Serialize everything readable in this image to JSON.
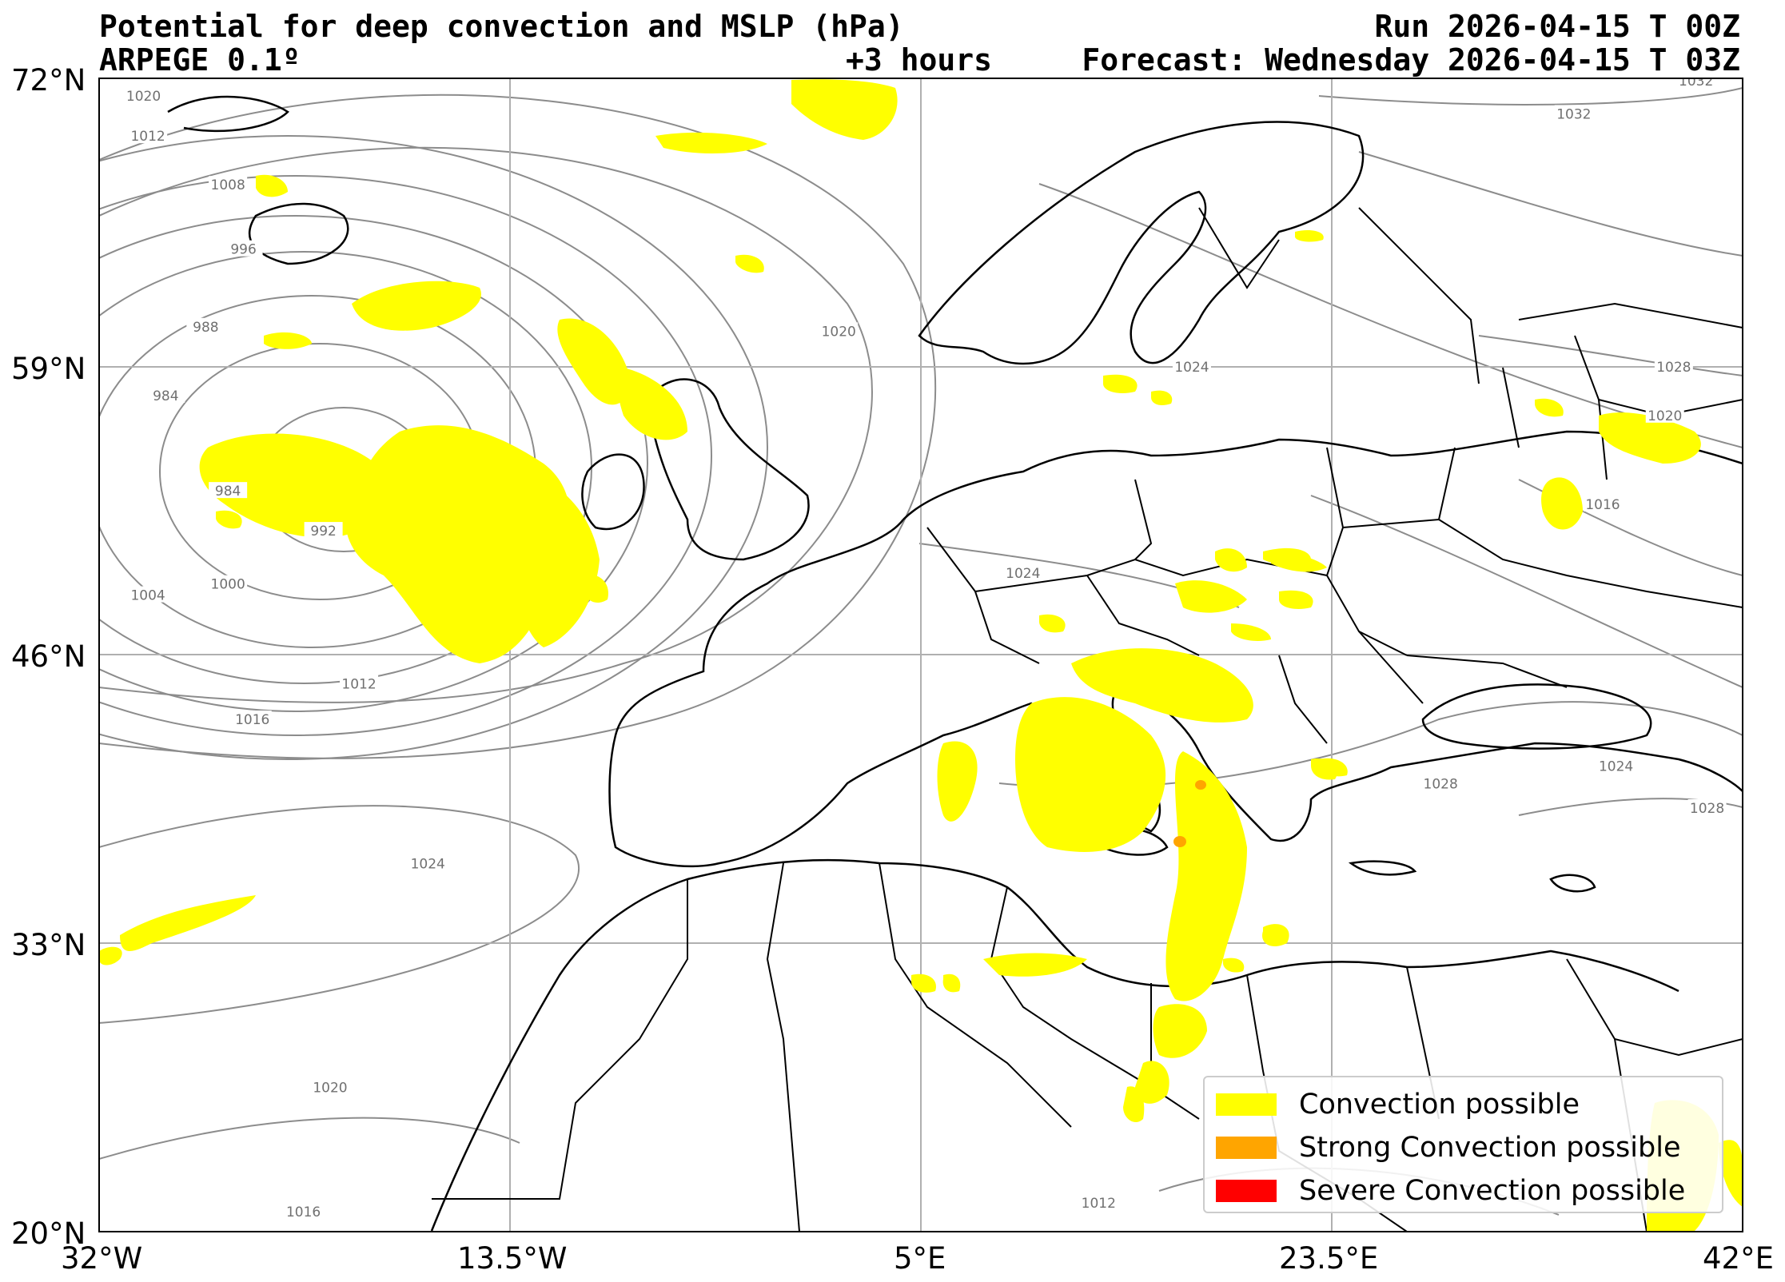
{
  "header": {
    "title": "Potential for deep convection and MSLP (hPa)",
    "model": "ARPEGE 0.1º",
    "lead": "+3 hours",
    "run": "Run 2026-04-15 T 00Z",
    "forecast": "Forecast: Wednesday 2026-04-15 T 03Z"
  },
  "axes": {
    "x_ticks": [
      {
        "value": -32,
        "label": "32°W"
      },
      {
        "value": -13.5,
        "label": "13.5°W"
      },
      {
        "value": 5,
        "label": "5°E"
      },
      {
        "value": 23.5,
        "label": "23.5°E"
      },
      {
        "value": 42,
        "label": "42°E"
      }
    ],
    "y_ticks": [
      {
        "value": 72,
        "label": "72°N"
      },
      {
        "value": 59,
        "label": "59°N"
      },
      {
        "value": 46,
        "label": "46°N"
      },
      {
        "value": 33,
        "label": "33°N"
      },
      {
        "value": 20,
        "label": "20°N"
      }
    ],
    "lon_range": [
      -32,
      42
    ],
    "lat_range": [
      20,
      72
    ],
    "grid": true
  },
  "legend": {
    "placement": "bottom-right",
    "items": [
      {
        "label": "Convection possible",
        "color": "#ffff00"
      },
      {
        "label": "Strong Convection possible",
        "color": "#ffa500"
      },
      {
        "label": "Severe Convection possible",
        "color": "#ff0000"
      }
    ]
  },
  "isobar_labels": [
    {
      "text": "1020",
      "lon": -30,
      "lat": 71.2
    },
    {
      "text": "1012",
      "lon": -29.8,
      "lat": 69.4
    },
    {
      "text": "1008",
      "lon": -26.2,
      "lat": 67.2
    },
    {
      "text": "996",
      "lon": -25.5,
      "lat": 64.3
    },
    {
      "text": "988",
      "lon": -27.2,
      "lat": 60.8
    },
    {
      "text": "984",
      "lon": -29,
      "lat": 57.7
    },
    {
      "text": "984",
      "lon": -26.2,
      "lat": 53.4
    },
    {
      "text": "992",
      "lon": -21.9,
      "lat": 51.6
    },
    {
      "text": "1000",
      "lon": -26.2,
      "lat": 49.2
    },
    {
      "text": "1004",
      "lon": -29.8,
      "lat": 48.7
    },
    {
      "text": "1012",
      "lon": -20.3,
      "lat": 44.7
    },
    {
      "text": "1016",
      "lon": -25.1,
      "lat": 43.1
    },
    {
      "text": "1024",
      "lon": -17.2,
      "lat": 36.6
    },
    {
      "text": "1020",
      "lon": -21.6,
      "lat": 26.5
    },
    {
      "text": "1016",
      "lon": -22.8,
      "lat": 20.9
    },
    {
      "text": "1020",
      "lon": 1.3,
      "lat": 60.6
    },
    {
      "text": "1024",
      "lon": 17.2,
      "lat": 59.0
    },
    {
      "text": "1024",
      "lon": 9.6,
      "lat": 49.7
    },
    {
      "text": "1032",
      "lon": 39.9,
      "lat": 71.9
    },
    {
      "text": "1032",
      "lon": 34.4,
      "lat": 70.4
    },
    {
      "text": "1028",
      "lon": 38.9,
      "lat": 59.0
    },
    {
      "text": "1020",
      "lon": 38.5,
      "lat": 56.8
    },
    {
      "text": "1016",
      "lon": 35.7,
      "lat": 52.8
    },
    {
      "text": "1024",
      "lon": 36.3,
      "lat": 41.0
    },
    {
      "text": "1028",
      "lon": 40.4,
      "lat": 39.1
    },
    {
      "text": "1028",
      "lon": 28.4,
      "lat": 40.2
    },
    {
      "text": "1012",
      "lon": 13.0,
      "lat": 21.3
    }
  ]
}
